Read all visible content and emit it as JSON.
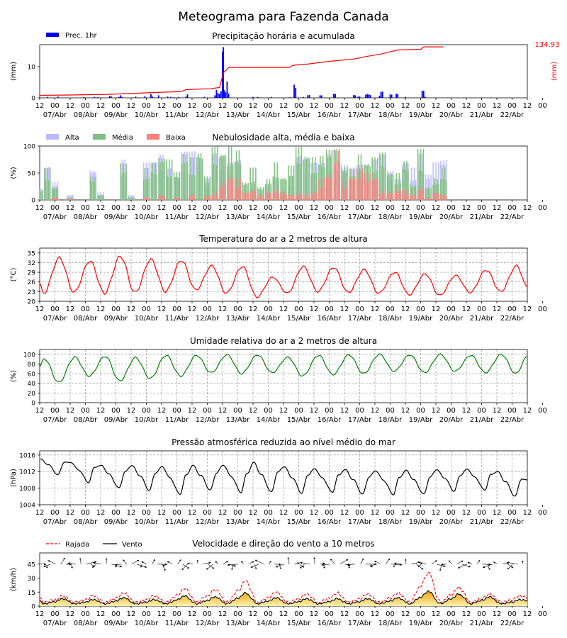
{
  "title": "Meteograma para Fazenda Canada",
  "colors": {
    "precip": "#0000ee",
    "accum": "#ff0000",
    "cloud_alta": "#b9b9ff",
    "cloud_media": "#7fbf7f",
    "cloud_baixa": "#ff7f7f",
    "temp": "#ff0000",
    "humidity": "#008000",
    "pressure": "#000000",
    "gust": "#ff0000",
    "wind": "#000000",
    "wind_fill_top": "#e8a000",
    "wind_fill_bottom": "#fff2b0"
  },
  "x_axis": {
    "hour_labels": [
      "12",
      "00",
      "12",
      "00",
      "12",
      "00",
      "12",
      "00",
      "12",
      "00",
      "12",
      "00",
      "12",
      "00",
      "12",
      "00",
      "12",
      "00",
      "12",
      "00",
      "12",
      "00",
      "12",
      "00",
      "12",
      "00",
      "12",
      "00",
      "12",
      "00",
      "12",
      "00",
      "12",
      "00"
    ],
    "date_labels": [
      "07/Abr",
      "08/Abr",
      "09/Abr",
      "10/Abr",
      "11/Abr",
      "12/Abr",
      "13/Abr",
      "14/Abr",
      "15/Abr",
      "16/Abr",
      "17/Abr",
      "18/Abr",
      "19/Abr",
      "20/Abr",
      "21/Abr",
      "22/Abr"
    ]
  },
  "chart_data": [
    {
      "type": "bar",
      "title": "Precipitação horária e acumulada",
      "ylabel": "(mm)",
      "ylabel_right": "(mm)",
      "legend": [
        "Prec. 1hr"
      ],
      "accum_total_label": "134.93",
      "ylim": [
        0,
        17
      ],
      "yticks": [
        0,
        10
      ],
      "bars": [
        [
          0.5,
          0.3
        ],
        [
          1.2,
          0.4
        ],
        [
          2.9,
          0.3
        ],
        [
          3.6,
          0.3
        ],
        [
          3.8,
          0.2
        ],
        [
          4.6,
          0.6
        ],
        [
          4.7,
          0.4
        ],
        [
          5.2,
          0.3
        ],
        [
          5.3,
          0.8
        ],
        [
          5.4,
          0.3
        ],
        [
          6.3,
          0.4
        ],
        [
          6.9,
          0.5
        ],
        [
          7.3,
          1.2
        ],
        [
          7.4,
          0.4
        ],
        [
          7.8,
          0.8
        ],
        [
          8.4,
          0.4
        ],
        [
          8.6,
          0.3
        ],
        [
          8.8,
          0.2
        ],
        [
          9.1,
          0.3
        ],
        [
          9.6,
          0.4
        ],
        [
          9.7,
          1.1
        ],
        [
          10.8,
          0.3
        ],
        [
          11.5,
          0.8
        ],
        [
          11.6,
          2.5
        ],
        [
          11.7,
          1.5
        ],
        [
          11.8,
          1.2
        ],
        [
          11.9,
          2.1
        ],
        [
          12.0,
          14.8
        ],
        [
          12.05,
          16.2
        ],
        [
          12.1,
          2.5
        ],
        [
          12.2,
          1.8
        ],
        [
          12.3,
          5.2
        ],
        [
          12.4,
          1.4
        ],
        [
          14.0,
          0.3
        ],
        [
          14.3,
          0.3
        ],
        [
          15.2,
          0.3
        ],
        [
          16.4,
          0.2
        ],
        [
          16.7,
          4.2
        ],
        [
          16.8,
          3.2
        ],
        [
          17.3,
          0.3
        ],
        [
          17.6,
          0.8
        ],
        [
          17.7,
          0.9
        ],
        [
          18.4,
          0.8
        ],
        [
          18.5,
          0.8
        ],
        [
          19.3,
          1.3
        ],
        [
          19.4,
          1.2
        ],
        [
          20.6,
          0.9
        ],
        [
          20.7,
          0.8
        ],
        [
          20.9,
          0.4
        ],
        [
          21.0,
          0.4
        ],
        [
          21.4,
          1.0
        ],
        [
          21.5,
          1.2
        ],
        [
          21.6,
          1.1
        ],
        [
          21.7,
          0.9
        ],
        [
          22.3,
          0.7
        ],
        [
          22.4,
          1.9
        ],
        [
          22.5,
          2.0
        ],
        [
          23.0,
          1.1
        ],
        [
          23.1,
          1.0
        ],
        [
          23.4,
          1.3
        ],
        [
          23.5,
          1.2
        ],
        [
          24.0,
          0.3
        ],
        [
          25.1,
          2.3
        ],
        [
          25.2,
          2.2
        ],
        [
          25.3,
          0.3
        ]
      ],
      "accum_line": [
        [
          0,
          0.8
        ],
        [
          2,
          0.9
        ],
        [
          4.5,
          1.1
        ],
        [
          6.5,
          1.5
        ],
        [
          8,
          1.8
        ],
        [
          9.3,
          2.0
        ],
        [
          9.6,
          2.6
        ],
        [
          10.5,
          2.8
        ],
        [
          11.2,
          2.9
        ],
        [
          11.8,
          3.3
        ],
        [
          12.0,
          7.0
        ],
        [
          12.1,
          8.3
        ],
        [
          12.3,
          9.1
        ],
        [
          12.4,
          9.7
        ],
        [
          16.4,
          9.7
        ],
        [
          16.6,
          10.4
        ],
        [
          17.6,
          10.8
        ],
        [
          18.4,
          11.3
        ],
        [
          19.3,
          11.8
        ],
        [
          20.6,
          12.4
        ],
        [
          21.4,
          13.2
        ],
        [
          22.4,
          14.0
        ],
        [
          23.0,
          14.7
        ],
        [
          23.5,
          15.3
        ],
        [
          25.0,
          15.5
        ],
        [
          25.2,
          16.3
        ],
        [
          26.5,
          16.3
        ]
      ]
    },
    {
      "type": "bar",
      "title": "Nebulosidade alta, média e baixa",
      "ylabel": "(%)",
      "ylim": [
        0,
        100
      ],
      "yticks": [
        0,
        50,
        100
      ],
      "series": [
        {
          "name": "Alta",
          "values": [
            [
              0,
              20
            ],
            [
              0.5,
              65
            ],
            [
              1,
              35
            ],
            [
              2,
              10
            ],
            [
              3.5,
              60
            ],
            [
              4,
              15
            ],
            [
              5.5,
              75
            ],
            [
              6,
              10
            ],
            [
              7,
              70
            ],
            [
              7.5,
              80
            ],
            [
              8,
              85
            ],
            [
              8.5,
              60
            ],
            [
              9,
              50
            ],
            [
              9.5,
              90
            ],
            [
              10,
              95
            ],
            [
              10.5,
              85
            ],
            [
              11,
              40
            ],
            [
              11.5,
              95
            ],
            [
              12,
              80
            ],
            [
              12.5,
              70
            ],
            [
              13,
              85
            ],
            [
              13.5,
              20
            ],
            [
              14,
              30
            ],
            [
              14.5,
              15
            ],
            [
              15,
              25
            ],
            [
              15.5,
              40
            ],
            [
              16,
              20
            ],
            [
              16.5,
              45
            ],
            [
              17,
              90
            ],
            [
              17.5,
              75
            ],
            [
              18,
              70
            ],
            [
              18.5,
              80
            ],
            [
              19,
              85
            ],
            [
              19.5,
              75
            ],
            [
              20,
              70
            ],
            [
              20.5,
              60
            ],
            [
              21,
              70
            ],
            [
              21.5,
              50
            ],
            [
              22,
              75
            ],
            [
              22.5,
              95
            ],
            [
              23,
              55
            ],
            [
              23.5,
              40
            ],
            [
              24,
              80
            ],
            [
              24.5,
              60
            ],
            [
              25,
              90
            ],
            [
              25.5,
              50
            ],
            [
              26,
              70
            ],
            [
              26.5,
              80
            ]
          ]
        },
        {
          "name": "Média",
          "values": [
            [
              0,
              20
            ],
            [
              0.5,
              60
            ],
            [
              1,
              25
            ],
            [
              2,
              5
            ],
            [
              3.5,
              45
            ],
            [
              4,
              10
            ],
            [
              5.5,
              70
            ],
            [
              6,
              5
            ],
            [
              7,
              60
            ],
            [
              7.5,
              70
            ],
            [
              8,
              85
            ],
            [
              8.5,
              75
            ],
            [
              9,
              55
            ],
            [
              9.5,
              90
            ],
            [
              10,
              80
            ],
            [
              10.5,
              95
            ],
            [
              11,
              45
            ],
            [
              11.5,
              100
            ],
            [
              12,
              95
            ],
            [
              12.5,
              100
            ],
            [
              13,
              95
            ],
            [
              13.5,
              35
            ],
            [
              14,
              60
            ],
            [
              14.5,
              25
            ],
            [
              15,
              40
            ],
            [
              15.5,
              70
            ],
            [
              16,
              45
            ],
            [
              16.5,
              65
            ],
            [
              17,
              100
            ],
            [
              17.5,
              90
            ],
            [
              18,
              80
            ],
            [
              18.5,
              85
            ],
            [
              19,
              100
            ],
            [
              19.5,
              95
            ],
            [
              20,
              65
            ],
            [
              20.5,
              60
            ],
            [
              21,
              85
            ],
            [
              21.5,
              75
            ],
            [
              22,
              80
            ],
            [
              22.5,
              90
            ],
            [
              23,
              55
            ],
            [
              23.5,
              50
            ],
            [
              24,
              75
            ],
            [
              24.5,
              30
            ],
            [
              25,
              95
            ],
            [
              25.5,
              25
            ],
            [
              26,
              40
            ],
            [
              26.5,
              60
            ]
          ]
        },
        {
          "name": "Baixa",
          "values": [
            [
              1,
              5
            ],
            [
              2,
              2
            ],
            [
              7,
              5
            ],
            [
              8,
              10
            ],
            [
              9,
              5
            ],
            [
              10,
              10
            ],
            [
              11,
              8
            ],
            [
              11.5,
              15
            ],
            [
              12,
              35
            ],
            [
              12.5,
              45
            ],
            [
              13,
              40
            ],
            [
              13.5,
              15
            ],
            [
              14,
              20
            ],
            [
              14.5,
              10
            ],
            [
              15,
              15
            ],
            [
              15.5,
              20
            ],
            [
              16,
              15
            ],
            [
              16.5,
              10
            ],
            [
              17,
              15
            ],
            [
              17.5,
              10
            ],
            [
              18,
              15
            ],
            [
              18.5,
              40
            ],
            [
              19,
              50
            ],
            [
              19.5,
              95
            ],
            [
              20,
              35
            ],
            [
              20.5,
              45
            ],
            [
              21,
              60
            ],
            [
              21.5,
              50
            ],
            [
              22,
              45
            ],
            [
              22.5,
              20
            ],
            [
              23,
              15
            ],
            [
              23.5,
              20
            ],
            [
              24,
              20
            ],
            [
              24.5,
              10
            ],
            [
              25,
              25
            ],
            [
              25.5,
              5
            ],
            [
              26,
              15
            ],
            [
              26.5,
              10
            ]
          ]
        }
      ]
    },
    {
      "type": "line",
      "title": "Temperatura do ar a 2 metros de altura",
      "ylabel": "(°C)",
      "ylim": [
        20,
        36.5
      ],
      "yticks": [
        20,
        23,
        26,
        29,
        32,
        35
      ],
      "daily_max": [
        33.5,
        32.5,
        34.0,
        33.0,
        32.7,
        31.0,
        30.8,
        27.5,
        30.8,
        30.5,
        29.8,
        29.0,
        28.5,
        28.0,
        29.7,
        31.0
      ],
      "daily_min": [
        22.5,
        22.8,
        22.5,
        22.7,
        23.0,
        23.5,
        22.5,
        21.3,
        22.5,
        23.0,
        22.7,
        22.5,
        22.0,
        21.8,
        22.7,
        23.0
      ],
      "start_value": 25.5,
      "end_value": 24.5
    },
    {
      "type": "line",
      "title": "Umidade relativa do ar a 2 metros de altura",
      "ylabel": "(%)",
      "ylim": [
        0,
        110
      ],
      "yticks": [
        0,
        20,
        40,
        60,
        80,
        100
      ],
      "daily_max": [
        91,
        94,
        96,
        93,
        98,
        98,
        99,
        99,
        94,
        98,
        99,
        100,
        99,
        100,
        98,
        100
      ],
      "daily_min": [
        42,
        55,
        45,
        50,
        55,
        62,
        60,
        62,
        55,
        58,
        60,
        65,
        62,
        65,
        62,
        60
      ],
      "start_value": 75,
      "end_value": 95
    },
    {
      "type": "line",
      "title": "Pressão atmosférica reduzida ao nível médio do mar",
      "ylabel": "(hPa)",
      "ylim": [
        1004,
        1017
      ],
      "yticks": [
        1004,
        1008,
        1012,
        1016
      ],
      "daily_max": [
        1015,
        1014.2,
        1013.5,
        1013.5,
        1013.2,
        1013.5,
        1013.6,
        1014.2,
        1013.2,
        1012.7,
        1012.5,
        1012.2,
        1012.3,
        1012.5,
        1012.6,
        1012
      ],
      "daily_min": [
        1011.2,
        1009.4,
        1008,
        1007.5,
        1006.5,
        1007.5,
        1007,
        1007,
        1006.8,
        1007,
        1006.5,
        1006.5,
        1006.5,
        1007.3,
        1007.5,
        1006
      ],
      "end_value": 1010
    },
    {
      "type": "area",
      "title": "Velocidade e direção do vento a 10 metros",
      "ylabel": "(km/h)",
      "ylim": [
        0,
        57
      ],
      "yticks": [
        0,
        15,
        30,
        45
      ],
      "legend": [
        "Rajada",
        "Vento"
      ],
      "wind_peaks": [
        8,
        7,
        9,
        7,
        11,
        10,
        14,
        9,
        8,
        8,
        8,
        9,
        16,
        13,
        10,
        7
      ],
      "gust_peaks": [
        11,
        11,
        14,
        11,
        19,
        18,
        27,
        15,
        13,
        14,
        13,
        14,
        36,
        20,
        13,
        11
      ],
      "arrow_row_value": 45
    }
  ]
}
